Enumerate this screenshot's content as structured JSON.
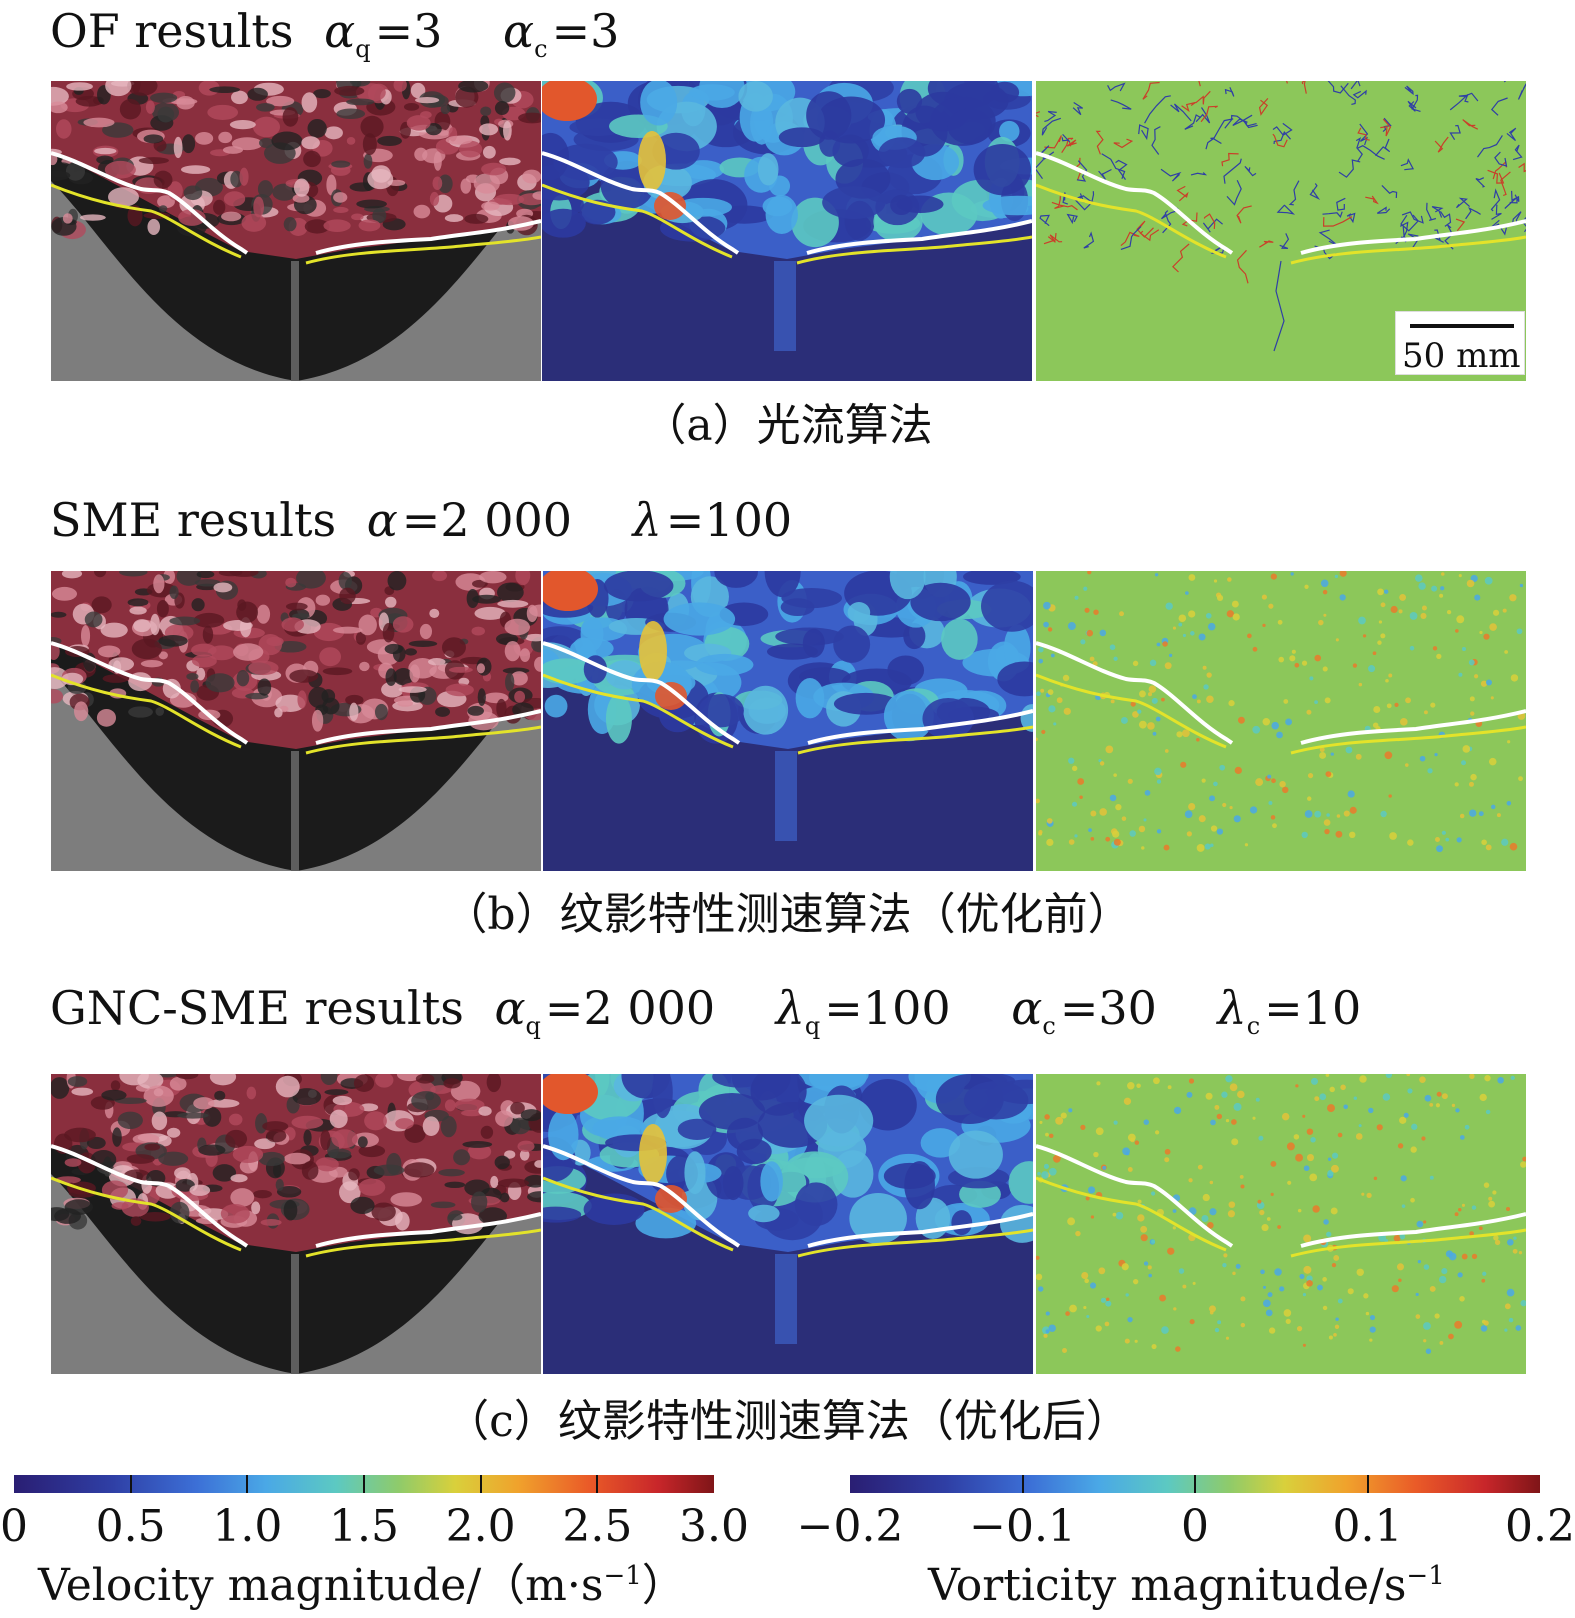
{
  "rows": [
    {
      "label": "OF results",
      "params": [
        {
          "sym": "α",
          "sub": "q",
          "val": "3"
        },
        {
          "sym": "α",
          "sub": "c",
          "val": "3"
        }
      ],
      "caption": "（a）光流算法"
    },
    {
      "label": "SME results",
      "params": [
        {
          "sym": "α",
          "sub": "",
          "val": "2 000"
        },
        {
          "sym": "λ",
          "sub": "",
          "val": "100"
        }
      ],
      "caption": "（b）纹影特性测速算法（优化前）"
    },
    {
      "label": "GNC-SME results",
      "params": [
        {
          "sym": "α",
          "sub": "q",
          "val": "2 000"
        },
        {
          "sym": "λ",
          "sub": "q",
          "val": "100"
        },
        {
          "sym": "α",
          "sub": "c",
          "val": "30"
        },
        {
          "sym": "λ",
          "sub": "c",
          "val": "10"
        }
      ],
      "caption": "（c）纹影特性测速算法（优化后）"
    }
  ],
  "scalebar": {
    "label": "50 mm"
  },
  "colorbars": {
    "velocity": {
      "ticks": [
        "0",
        "0.5",
        "1.0",
        "1.5",
        "2.0",
        "2.5",
        "3.0"
      ],
      "title": "Velocity magnitude/（m·s",
      "title_sup": "−1",
      "title_end": "）",
      "range": [
        0,
        3.0
      ]
    },
    "vorticity": {
      "ticks": [
        "−0.2",
        "−0.1",
        "0",
        "0.1",
        "0.2"
      ],
      "title": "Vorticity magnitude/s",
      "title_sup": "−1",
      "range": [
        -0.2,
        0.2
      ]
    }
  },
  "colors": {
    "white_line": "#ffffff",
    "yellow_line": "#e3e32a",
    "field_background_dark": "#2b2e78",
    "vorticity_background": "#8cc75a"
  }
}
